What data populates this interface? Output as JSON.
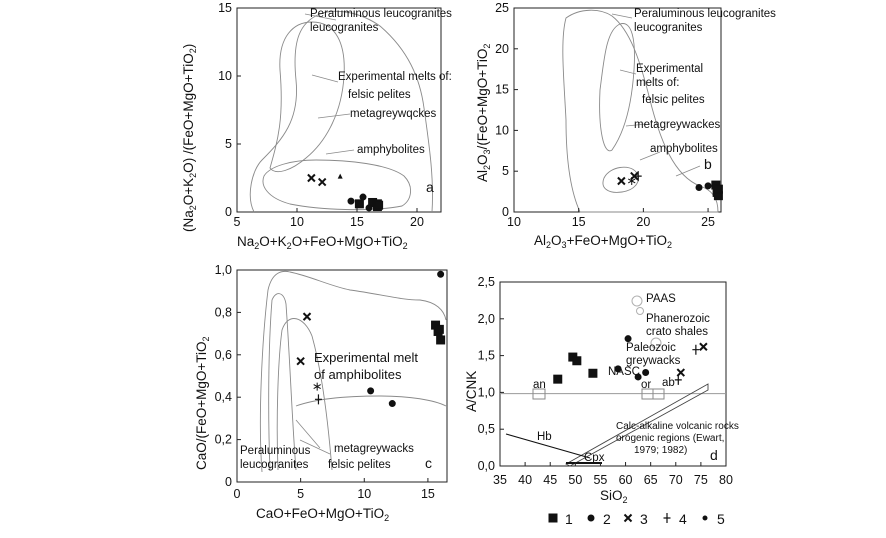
{
  "chart_data": [
    {
      "type": "scatter",
      "panel_label": "a",
      "xlabel": "Na2O+K2O+FeO+MgO+TiO2",
      "ylabel": "(Na2O+K2O) /(FeO+MgO+TiO2)",
      "xlim": [
        5,
        22
      ],
      "ylim": [
        0,
        15
      ],
      "xticks": [
        5,
        10,
        15,
        20
      ],
      "yticks": [
        0,
        5,
        10,
        15
      ],
      "annotations": [
        "Peraluminous leucogranites",
        "Experimental melts of:",
        "felsic pelites",
        "metagreywqckes",
        "amphybolites"
      ],
      "series": [
        {
          "name": "1",
          "marker": "square",
          "x": [
            15.2,
            16.3,
            16.7,
            16.7,
            16.8
          ],
          "y": [
            0.6,
            0.7,
            0.4,
            0.6,
            0.5
          ]
        },
        {
          "name": "2",
          "marker": "dot",
          "x": [
            14.5,
            15.5,
            16.0
          ],
          "y": [
            0.8,
            1.1,
            0.3
          ]
        },
        {
          "name": "3",
          "marker": "cross",
          "x": [
            11.2,
            12.1
          ],
          "y": [
            2.5,
            2.2
          ]
        },
        {
          "name": "5",
          "marker": "small-triangle",
          "x": [
            13.6
          ],
          "y": [
            2.6
          ]
        }
      ]
    },
    {
      "type": "scatter",
      "panel_label": "b",
      "xlabel": "Al2O3+FeO+MgO+TiO2",
      "ylabel": "Al2O3/(FeO+MgO+TiO2",
      "xlim": [
        10,
        26
      ],
      "ylim": [
        0,
        25
      ],
      "xticks": [
        10,
        15,
        20,
        25
      ],
      "yticks": [
        0,
        5,
        10,
        15,
        20,
        25
      ],
      "annotations": [
        "Peraluminous leucogranites",
        "Experimental melts of:",
        "felsic pelites",
        "metagreywackes",
        "amphybolites"
      ],
      "series": [
        {
          "name": "1",
          "marker": "square",
          "x": [
            25.6,
            25.7,
            25.8,
            25.8
          ],
          "y": [
            3.3,
            2.4,
            2.0,
            2.8
          ]
        },
        {
          "name": "2",
          "marker": "dot",
          "x": [
            24.3,
            25.0
          ],
          "y": [
            3.0,
            3.2
          ]
        },
        {
          "name": "3",
          "marker": "cross",
          "x": [
            18.3,
            19.3
          ],
          "y": [
            3.8,
            4.4
          ]
        },
        {
          "name": "4",
          "marker": "plus",
          "x": [
            19.6
          ],
          "y": [
            4.4
          ]
        },
        {
          "name": "5",
          "marker": "asterisk",
          "x": [
            19.1
          ],
          "y": [
            3.8
          ]
        }
      ]
    },
    {
      "type": "scatter",
      "panel_label": "c",
      "xlabel": "CaO+FeO+MgO+TiO2",
      "ylabel": "CaO/(FeO+MgO+TiO2",
      "xlim": [
        0,
        16.5
      ],
      "ylim": [
        0,
        1.0
      ],
      "xticks": [
        0,
        5,
        10,
        15
      ],
      "ytick_labels": [
        "0",
        "0,2",
        "0,4",
        "0,6",
        "0,8",
        "1,0"
      ],
      "annotations": [
        "Experimental melt of amphibolites",
        "Peraluminous leucogranites",
        "metagreywacks",
        "felsic pelites"
      ],
      "series": [
        {
          "name": "1",
          "marker": "square",
          "x": [
            15.6,
            15.8,
            15.9,
            16.0
          ],
          "y": [
            0.74,
            0.71,
            0.72,
            0.67
          ]
        },
        {
          "name": "2",
          "marker": "dot",
          "x": [
            10.5,
            12.2,
            16.0
          ],
          "y": [
            0.43,
            0.37,
            0.98
          ]
        },
        {
          "name": "3",
          "marker": "cross",
          "x": [
            5.0,
            5.5
          ],
          "y": [
            0.57,
            0.78
          ]
        },
        {
          "name": "4",
          "marker": "plus",
          "x": [
            6.4
          ],
          "y": [
            0.39
          ]
        },
        {
          "name": "5",
          "marker": "asterisk",
          "x": [
            6.3
          ],
          "y": [
            0.45
          ]
        }
      ]
    },
    {
      "type": "scatter",
      "panel_label": "d",
      "xlabel": "SiO2",
      "ylabel": "A/CNK",
      "xlim": [
        35,
        80
      ],
      "ylim": [
        0,
        2.5
      ],
      "xticks": [
        35,
        40,
        45,
        50,
        55,
        60,
        65,
        70,
        75,
        80
      ],
      "ytick_labels": [
        "0,0",
        "0,5",
        "1,0",
        "1,5",
        "2,0",
        "2,5"
      ],
      "reference_line_y": 1.0,
      "annotations": [
        "PAAS",
        "Phanerozoic crato shales",
        "Paleozoic greywacks",
        "NASC",
        "an",
        "or",
        "ab",
        "Hb",
        "Cpx",
        "Calc-alkaline volcanic rocks orogenic regions (Ewart, 1979; 1982)"
      ],
      "series": [
        {
          "name": "1",
          "marker": "square",
          "x": [
            46.5,
            49.5,
            50.3,
            53.5
          ],
          "y": [
            1.18,
            1.48,
            1.43,
            1.26
          ]
        },
        {
          "name": "2",
          "marker": "dot",
          "x": [
            60.5,
            62.5,
            58.5,
            64.0
          ],
          "y": [
            1.73,
            1.21,
            1.32,
            1.27
          ]
        },
        {
          "name": "3",
          "marker": "cross",
          "x": [
            71.0,
            75.5
          ],
          "y": [
            1.27,
            1.62
          ]
        },
        {
          "name": "4",
          "marker": "plus",
          "x": [
            70.5,
            74.0
          ],
          "y": [
            1.17,
            1.58
          ]
        }
      ]
    }
  ],
  "legend": [
    {
      "marker": "square",
      "label": "1"
    },
    {
      "marker": "dot",
      "label": "2"
    },
    {
      "marker": "cross",
      "label": "3"
    },
    {
      "marker": "plus",
      "label": "4"
    },
    {
      "marker": "small-dot",
      "label": "5"
    }
  ]
}
